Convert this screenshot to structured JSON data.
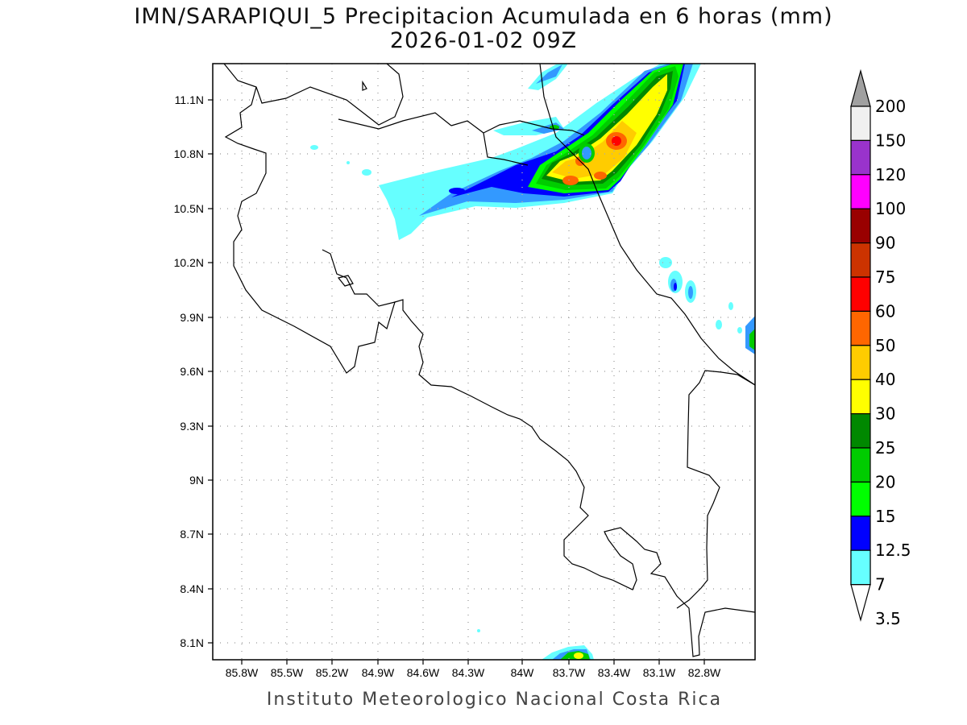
{
  "title": {
    "line1": "IMN/SARAPIQUI_5 Precipitacion Acumulada en 6 horas (mm)",
    "line2": "2026-01-02 09Z"
  },
  "footer": "Instituto Meteorologico Nacional Costa Rica",
  "map": {
    "lon_range": [
      -86.0,
      -83.0
    ],
    "lat_range": [
      7.99,
      11.3
    ],
    "lon_ticks": [
      "85.8W",
      "85.5W",
      "85.2W",
      "84.9W",
      "84.6W",
      "84.3W",
      "84W",
      "83.7W",
      "83.4W",
      "83.1W",
      "82.8W"
    ],
    "lat_ticks": [
      "11.1N",
      "10.8N",
      "10.5N",
      "10.2N",
      "9.9N",
      "9.6N",
      "9.3N",
      "9N",
      "8.7N",
      "8.4N",
      "8.1N"
    ],
    "grid": "dotted"
  },
  "colorbar": {
    "labels": [
      "200",
      "150",
      "120",
      "100",
      "90",
      "75",
      "60",
      "50",
      "40",
      "30",
      "25",
      "20",
      "15",
      "12.5",
      "7",
      "3.5"
    ],
    "colors": [
      "#a0a0a0",
      "#f0f0f0",
      "#9933cc",
      "#ff00ff",
      "#990000",
      "#cc3300",
      "#ff0000",
      "#ff6600",
      "#ffcc00",
      "#ffff00",
      "#008800",
      "#00cc00",
      "#00ff00",
      "#0000ff",
      "#3399ff",
      "#66ffff"
    ]
  }
}
